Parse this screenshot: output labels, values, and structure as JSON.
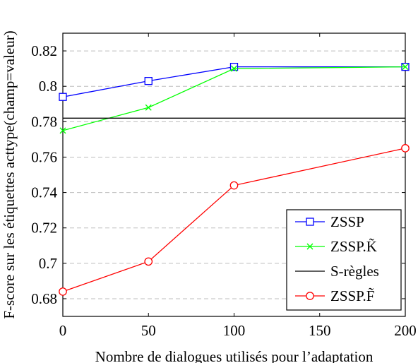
{
  "chart_data": {
    "type": "line",
    "xlabel": "Nombre de dialogues utilisés pour l’adaptation",
    "ylabel": "F-score sur les étiquettes acttype(champ=valeur)",
    "xlim": [
      0,
      200
    ],
    "ylim": [
      0.67,
      0.83
    ],
    "xticks": [
      0,
      50,
      100,
      150,
      200
    ],
    "xtick_labels": [
      "0",
      "50",
      "100",
      "150",
      "200"
    ],
    "yticks": [
      0.68,
      0.7,
      0.72,
      0.74,
      0.76,
      0.78,
      0.8,
      0.82
    ],
    "ytick_labels": [
      "0.68",
      "0.7",
      "0.72",
      "0.74",
      "0.76",
      "0.78",
      "0.8",
      "0.82"
    ],
    "grid": "horizontal-dashed",
    "legend_position": "bottom-right",
    "series": [
      {
        "name": "ZSSP",
        "color": "#0000ff",
        "marker": "square",
        "x": [
          0,
          50,
          100,
          200
        ],
        "y": [
          0.794,
          0.803,
          0.811,
          0.811
        ]
      },
      {
        "name": "ZSSP.K̃",
        "color": "#00ff00",
        "marker": "x",
        "x": [
          0,
          50,
          100,
          200
        ],
        "y": [
          0.775,
          0.788,
          0.81,
          0.811
        ]
      },
      {
        "name": "S-règles",
        "color": "#000000",
        "marker": "none",
        "x": [
          0,
          200
        ],
        "y": [
          0.782,
          0.782
        ]
      },
      {
        "name": "ZSSP.F̃",
        "color": "#ff0000",
        "marker": "circle",
        "x": [
          0,
          50,
          100,
          200
        ],
        "y": [
          0.684,
          0.701,
          0.744,
          0.765
        ]
      }
    ]
  }
}
